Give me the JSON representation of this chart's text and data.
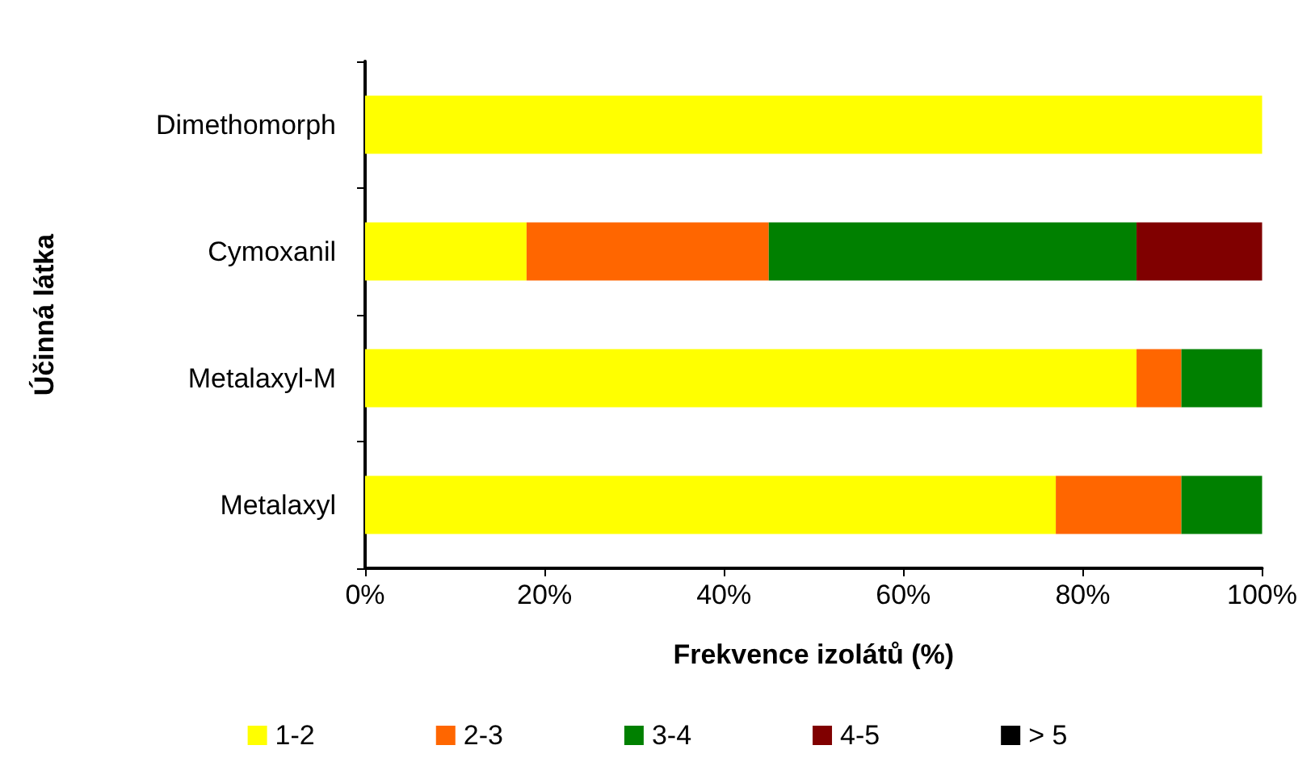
{
  "chart_data": {
    "type": "bar",
    "orientation": "horizontal",
    "stacked": true,
    "xlabel": "Frekvence izolátů (%)",
    "ylabel": "Účinná látka",
    "categories": [
      "Dimethomorph",
      "Cymoxanil",
      "Metalaxyl-M",
      "Metalaxyl"
    ],
    "series": [
      {
        "name": "1-2",
        "color": "#ffff00",
        "values": [
          100,
          18,
          86,
          77
        ]
      },
      {
        "name": "2-3",
        "color": "#ff6600",
        "values": [
          0,
          27,
          5,
          14
        ]
      },
      {
        "name": "3-4",
        "color": "#008000",
        "values": [
          0,
          41,
          9,
          9
        ]
      },
      {
        "name": "4-5",
        "color": "#800000",
        "values": [
          0,
          14,
          0,
          0
        ]
      },
      {
        "name": "> 5",
        "color": "#000000",
        "values": [
          0,
          0,
          0,
          0
        ]
      }
    ],
    "xlim": [
      0,
      100
    ],
    "xticks": [
      {
        "value": 0,
        "label": "0%"
      },
      {
        "value": 20,
        "label": "20%"
      },
      {
        "value": 40,
        "label": "40%"
      },
      {
        "value": 60,
        "label": "60%"
      },
      {
        "value": 80,
        "label": "80%"
      },
      {
        "value": 100,
        "label": "100%"
      }
    ],
    "grid": false,
    "legend": "bottom"
  }
}
